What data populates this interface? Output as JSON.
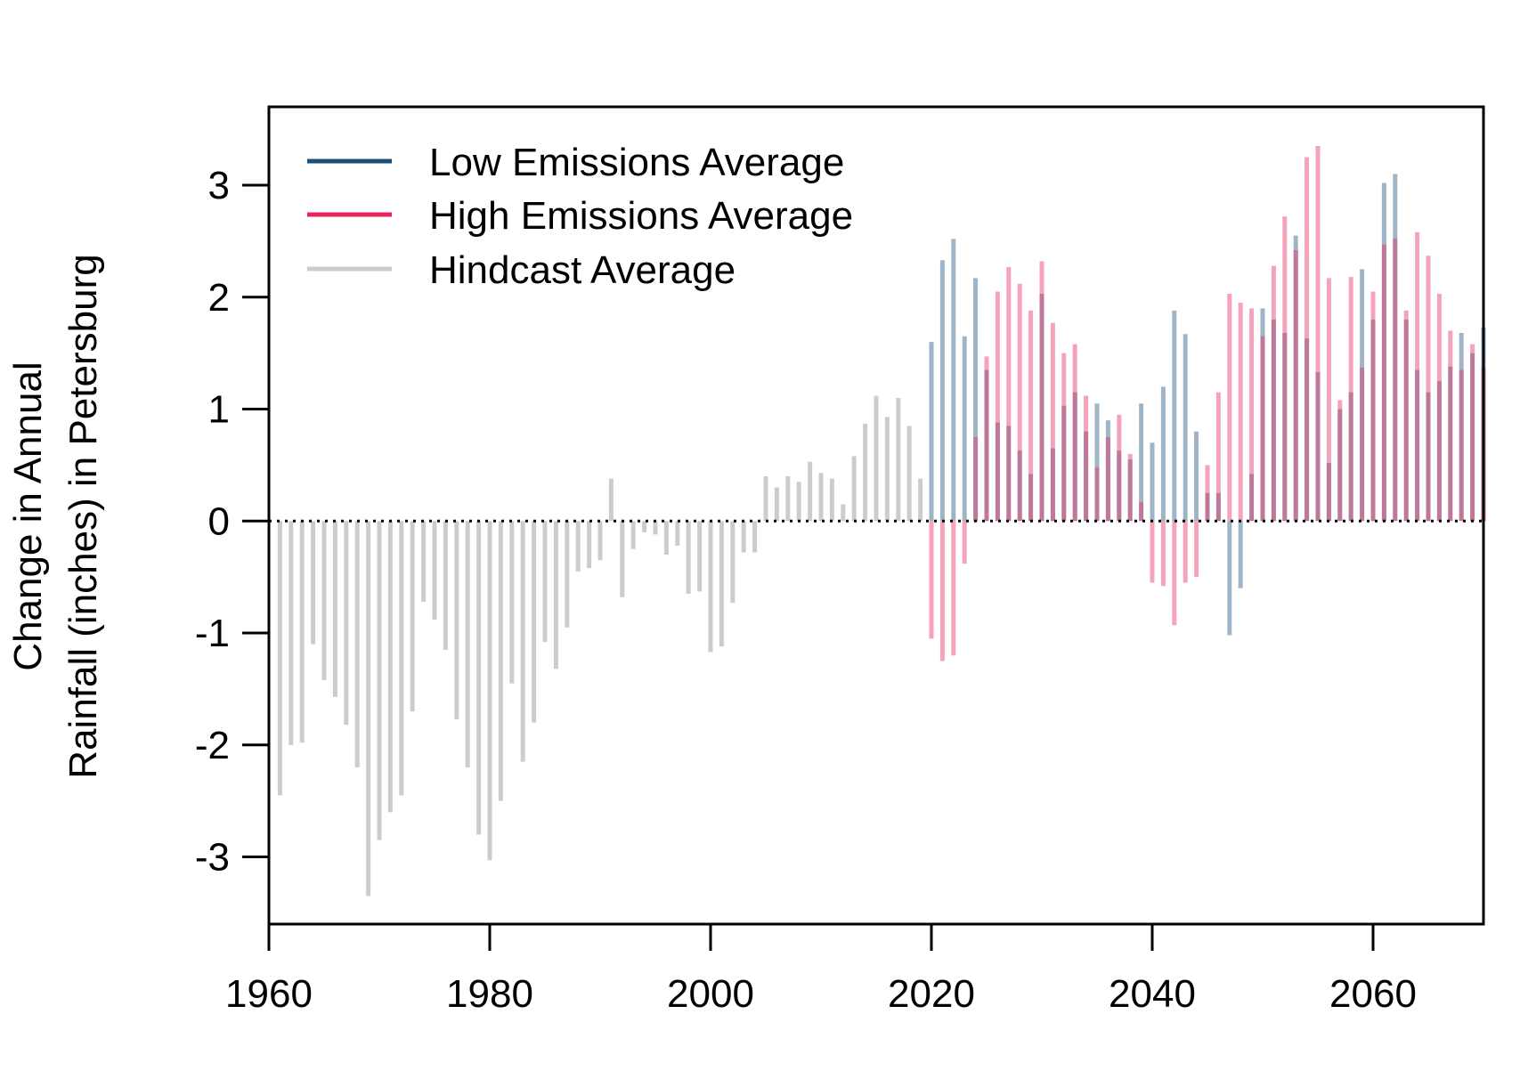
{
  "chart_data": {
    "type": "bar",
    "title": "",
    "xlabel": "",
    "ylabel_lines": [
      "Change in Annual",
      "Rainfall (inches) in Petersburg"
    ],
    "xlim": [
      1960,
      2070
    ],
    "ylim": [
      -3.6,
      3.7
    ],
    "x_ticks": [
      1960,
      1980,
      2000,
      2020,
      2040,
      2060
    ],
    "y_ticks": [
      -3,
      -2,
      -1,
      0,
      1,
      2,
      3
    ],
    "grid": false,
    "legend_position": "top-left",
    "reference_line": {
      "y": 0,
      "style": "dotted"
    },
    "legend": [
      {
        "label": "Low Emissions Average",
        "color": "#1b4f7a"
      },
      {
        "label": "High Emissions Average",
        "color": "#e8245c"
      },
      {
        "label": "Hindcast Average",
        "color": "#cccccc"
      }
    ],
    "series": [
      {
        "name": "Hindcast Average",
        "color": "#cccccc",
        "x": [
          1961,
          1962,
          1963,
          1964,
          1965,
          1966,
          1967,
          1968,
          1969,
          1970,
          1971,
          1972,
          1973,
          1974,
          1975,
          1976,
          1977,
          1978,
          1979,
          1980,
          1981,
          1982,
          1983,
          1984,
          1985,
          1986,
          1987,
          1988,
          1989,
          1990,
          1991,
          1992,
          1993,
          1994,
          1995,
          1996,
          1997,
          1998,
          1999,
          2000,
          2001,
          2002,
          2003,
          2004,
          2005,
          2006,
          2007,
          2008,
          2009,
          2010,
          2011,
          2012,
          2013,
          2014,
          2015,
          2016,
          2017,
          2018,
          2019
        ],
        "values": [
          -2.45,
          -2.0,
          -1.98,
          -1.1,
          -1.42,
          -1.57,
          -1.82,
          -2.2,
          -3.35,
          -2.85,
          -2.6,
          -2.45,
          -1.7,
          -0.72,
          -0.88,
          -1.15,
          -1.77,
          -2.2,
          -2.8,
          -3.03,
          -2.5,
          -1.45,
          -2.15,
          -1.8,
          -1.08,
          -1.32,
          -0.95,
          -0.45,
          -0.42,
          -0.35,
          0.38,
          -0.68,
          -0.25,
          -0.1,
          -0.12,
          -0.3,
          -0.22,
          -0.65,
          -0.63,
          -1.17,
          -1.12,
          -0.73,
          -0.28,
          -0.28,
          0.4,
          0.3,
          0.4,
          0.35,
          0.53,
          0.43,
          0.38,
          0.15,
          0.58,
          0.87,
          1.12,
          0.93,
          1.1,
          0.85,
          0.38
        ]
      },
      {
        "name": "Low Emissions Average",
        "color": "#1b4f7a",
        "x": [
          2020,
          2021,
          2022,
          2023,
          2024,
          2025,
          2026,
          2027,
          2028,
          2029,
          2030,
          2031,
          2032,
          2033,
          2034,
          2035,
          2036,
          2037,
          2038,
          2039,
          2040,
          2041,
          2042,
          2043,
          2044,
          2045,
          2046,
          2047,
          2048,
          2049,
          2050,
          2051,
          2052,
          2053,
          2054,
          2055,
          2056,
          2057,
          2058,
          2059,
          2060,
          2061,
          2062,
          2063,
          2064,
          2065,
          2066,
          2067,
          2068,
          2069,
          2070
        ],
        "values": [
          1.6,
          2.33,
          2.52,
          1.65,
          2.17,
          1.35,
          0.88,
          0.85,
          0.63,
          0.42,
          2.03,
          0.65,
          1.03,
          1.15,
          0.8,
          1.05,
          0.9,
          0.63,
          0.55,
          1.05,
          0.7,
          1.2,
          1.88,
          1.67,
          0.8,
          0.25,
          0.25,
          -1.02,
          -0.6,
          0.42,
          1.9,
          1.8,
          1.68,
          2.55,
          1.63,
          1.33,
          0.52,
          1.0,
          1.15,
          2.25,
          1.8,
          3.02,
          3.1,
          1.8,
          1.35,
          1.15,
          1.25,
          1.38,
          1.68,
          1.5,
          1.73
        ]
      },
      {
        "name": "High Emissions Average",
        "color": "#e8245c",
        "x": [
          2020,
          2021,
          2022,
          2023,
          2024,
          2025,
          2026,
          2027,
          2028,
          2029,
          2030,
          2031,
          2032,
          2033,
          2034,
          2035,
          2036,
          2037,
          2038,
          2039,
          2040,
          2041,
          2042,
          2043,
          2044,
          2045,
          2046,
          2047,
          2048,
          2049,
          2050,
          2051,
          2052,
          2053,
          2054,
          2055,
          2056,
          2057,
          2058,
          2059,
          2060,
          2061,
          2062,
          2063,
          2064,
          2065,
          2066,
          2067,
          2068,
          2069,
          2070
        ],
        "values": [
          -1.05,
          -1.25,
          -1.2,
          -0.38,
          0.75,
          1.47,
          2.05,
          2.27,
          2.12,
          1.88,
          2.32,
          1.77,
          1.5,
          1.58,
          1.12,
          0.48,
          0.75,
          0.95,
          0.6,
          0.17,
          -0.55,
          -0.58,
          -0.93,
          -0.55,
          -0.5,
          0.5,
          1.15,
          2.03,
          1.95,
          1.9,
          1.65,
          2.28,
          2.72,
          2.42,
          3.25,
          3.35,
          2.17,
          1.08,
          2.18,
          1.37,
          2.05,
          2.47,
          2.52,
          1.88,
          2.58,
          2.37,
          2.03,
          1.7,
          1.35,
          1.58,
          1.37
        ]
      }
    ]
  }
}
